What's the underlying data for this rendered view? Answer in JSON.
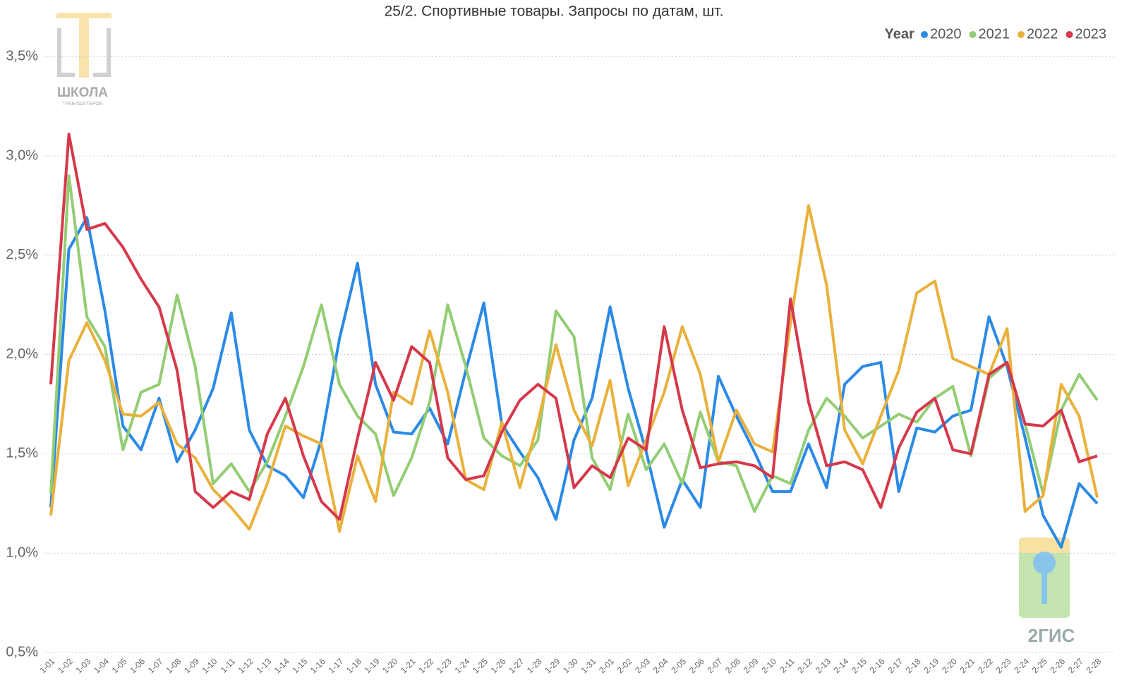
{
  "chart_data": {
    "type": "line",
    "title": "25/2. Спортивные товары. Запросы по датам, шт.",
    "legend_title": "Year",
    "legend_position": "top-right",
    "grid": true,
    "categories": [
      "1-01",
      "1-02",
      "1-03",
      "1-04",
      "1-05",
      "1-06",
      "1-07",
      "1-08",
      "1-09",
      "1-10",
      "1-11",
      "1-12",
      "1-13",
      "1-14",
      "1-15",
      "1-16",
      "1-17",
      "1-18",
      "1-19",
      "1-20",
      "1-21",
      "1-22",
      "1-23",
      "1-24",
      "1-25",
      "1-26",
      "1-27",
      "1-28",
      "1-29",
      "1-30",
      "1-31",
      "2-01",
      "2-02",
      "2-03",
      "2-04",
      "2-05",
      "2-06",
      "2-07",
      "2-08",
      "2-09",
      "2-10",
      "2-11",
      "2-12",
      "2-13",
      "2-14",
      "2-15",
      "2-16",
      "2-17",
      "2-18",
      "2-19",
      "2-20",
      "2-21",
      "2-22",
      "2-23",
      "2-24",
      "2-25",
      "2-26",
      "2-27",
      "2-28"
    ],
    "series": [
      {
        "name": "2020",
        "color": "#2b8ae6",
        "values": [
          1.23,
          2.53,
          2.69,
          2.22,
          1.64,
          1.52,
          1.78,
          1.46,
          1.62,
          1.83,
          2.21,
          1.62,
          1.44,
          1.39,
          1.28,
          1.57,
          2.08,
          2.46,
          1.85,
          1.61,
          1.6,
          1.73,
          1.55,
          1.92,
          2.26,
          1.65,
          1.51,
          1.38,
          1.17,
          1.57,
          1.78,
          2.24,
          1.83,
          1.51,
          1.13,
          1.37,
          1.23,
          1.89,
          1.69,
          1.51,
          1.31,
          1.31,
          1.55,
          1.33,
          1.85,
          1.94,
          1.96,
          1.31,
          1.63,
          1.61,
          1.69,
          1.72,
          2.19,
          1.94,
          1.58,
          1.19,
          1.03,
          1.35,
          1.25
        ]
      },
      {
        "name": "2021",
        "color": "#93cd74",
        "values": [
          1.3,
          2.9,
          2.19,
          2.04,
          1.52,
          1.81,
          1.85,
          2.3,
          1.94,
          1.35,
          1.45,
          1.31,
          1.46,
          1.69,
          1.94,
          2.25,
          1.85,
          1.69,
          1.6,
          1.29,
          1.48,
          1.76,
          2.25,
          1.94,
          1.58,
          1.49,
          1.44,
          1.57,
          2.22,
          2.09,
          1.48,
          1.32,
          1.7,
          1.42,
          1.55,
          1.35,
          1.71,
          1.46,
          1.44,
          1.21,
          1.39,
          1.35,
          1.62,
          1.78,
          1.69,
          1.58,
          1.64,
          1.7,
          1.66,
          1.78,
          1.84,
          1.49,
          1.88,
          1.96,
          1.65,
          1.3,
          1.72,
          1.9,
          1.77
        ]
      },
      {
        "name": "2022",
        "color": "#e9b13c",
        "values": [
          1.19,
          1.97,
          2.16,
          1.97,
          1.7,
          1.69,
          1.76,
          1.55,
          1.48,
          1.32,
          1.23,
          1.12,
          1.35,
          1.64,
          1.59,
          1.55,
          1.11,
          1.49,
          1.26,
          1.81,
          1.75,
          2.12,
          1.81,
          1.37,
          1.32,
          1.66,
          1.33,
          1.66,
          2.05,
          1.72,
          1.54,
          1.87,
          1.34,
          1.57,
          1.81,
          2.14,
          1.9,
          1.46,
          1.72,
          1.55,
          1.51,
          2.16,
          2.75,
          2.35,
          1.62,
          1.45,
          1.69,
          1.92,
          2.31,
          2.37,
          1.98,
          1.94,
          1.9,
          2.13,
          1.21,
          1.29,
          1.85,
          1.69,
          1.28
        ]
      },
      {
        "name": "2023",
        "color": "#d5394b",
        "values": [
          1.85,
          3.11,
          2.63,
          2.66,
          2.54,
          2.38,
          2.24,
          1.92,
          1.31,
          1.23,
          1.31,
          1.27,
          1.6,
          1.78,
          1.49,
          1.26,
          1.17,
          1.58,
          1.96,
          1.77,
          2.04,
          1.96,
          1.48,
          1.37,
          1.39,
          1.61,
          1.77,
          1.85,
          1.78,
          1.33,
          1.44,
          1.38,
          1.58,
          1.52,
          2.14,
          1.72,
          1.43,
          1.45,
          1.46,
          1.44,
          1.38,
          2.28,
          1.76,
          1.44,
          1.46,
          1.42,
          1.23,
          1.53,
          1.71,
          1.78,
          1.52,
          1.5,
          1.9,
          1.96,
          1.65,
          1.64,
          1.72,
          1.46,
          1.49
        ]
      }
    ],
    "ylim": [
      0.5,
      3.7
    ],
    "yticks": [
      {
        "value": 0.5,
        "label": "0,5%"
      },
      {
        "value": 1.0,
        "label": "1,0%"
      },
      {
        "value": 1.5,
        "label": "1,5%"
      },
      {
        "value": 2.0,
        "label": "2,0%"
      },
      {
        "value": 2.5,
        "label": "2,5%"
      },
      {
        "value": 3.0,
        "label": "3,0%"
      },
      {
        "value": 3.5,
        "label": "3,5%"
      }
    ]
  },
  "watermarks": [
    "ШКОЛА",
    "ТРАБЛШУТЕРОВ",
    "2ГИС"
  ]
}
